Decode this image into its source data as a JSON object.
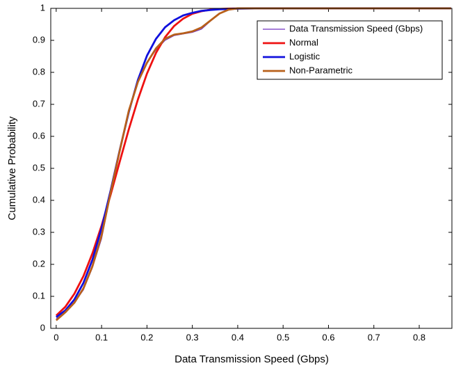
{
  "chart_data": {
    "type": "line",
    "xlabel": "Data Transmission Speed (Gbps)",
    "ylabel": "Cumulative Probability",
    "x": [
      0,
      0.02,
      0.04,
      0.06,
      0.08,
      0.1,
      0.12,
      0.14,
      0.16,
      0.18,
      0.2,
      0.22,
      0.24,
      0.26,
      0.28,
      0.3,
      0.32,
      0.34,
      0.36,
      0.38,
      0.4,
      0.45,
      0.5,
      0.6,
      0.7,
      0.8,
      0.87
    ],
    "series": [
      {
        "name": "Data Transmission Speed (Gbps)",
        "color": "#7030c0",
        "width": 1.2,
        "values": [
          0.03,
          0.05,
          0.08,
          0.12,
          0.19,
          0.28,
          0.42,
          0.55,
          0.68,
          0.77,
          0.83,
          0.87,
          0.9,
          0.915,
          0.92,
          0.925,
          0.935,
          0.96,
          0.985,
          0.995,
          1,
          1,
          1,
          1,
          1,
          1,
          1
        ]
      },
      {
        "name": "Normal",
        "color": "#ee1111",
        "width": 2.8,
        "values": [
          0.04,
          0.067,
          0.108,
          0.163,
          0.235,
          0.321,
          0.418,
          0.521,
          0.622,
          0.715,
          0.796,
          0.861,
          0.91,
          0.945,
          0.968,
          0.983,
          0.991,
          0.996,
          0.998,
          0.999,
          0.9997,
          1,
          1,
          1,
          1,
          1,
          1
        ]
      },
      {
        "name": "Logistic",
        "color": "#1010dd",
        "width": 2.8,
        "values": [
          0.035,
          0.056,
          0.09,
          0.142,
          0.215,
          0.313,
          0.431,
          0.557,
          0.676,
          0.776,
          0.852,
          0.905,
          0.941,
          0.963,
          0.978,
          0.986,
          0.992,
          0.995,
          0.997,
          0.998,
          0.999,
          1,
          1,
          1,
          1,
          1,
          1
        ]
      },
      {
        "name": "Non-Parametric",
        "color": "#b8601a",
        "width": 2.8,
        "values": [
          0.025,
          0.05,
          0.08,
          0.125,
          0.195,
          0.29,
          0.425,
          0.555,
          0.68,
          0.77,
          0.83,
          0.875,
          0.905,
          0.918,
          0.922,
          0.928,
          0.94,
          0.962,
          0.984,
          0.996,
          1,
          1,
          1,
          1,
          1,
          1,
          1
        ]
      }
    ],
    "xlim": [
      -0.012,
      0.872
    ],
    "ylim": [
      0,
      1
    ],
    "xticks": [
      0,
      0.1,
      0.2,
      0.3,
      0.4,
      0.5,
      0.6,
      0.7,
      0.8
    ],
    "yticks": [
      0,
      0.1,
      0.2,
      0.3,
      0.4,
      0.5,
      0.6,
      0.7,
      0.8,
      0.9,
      1
    ],
    "legend": "upper right",
    "grid": false
  }
}
